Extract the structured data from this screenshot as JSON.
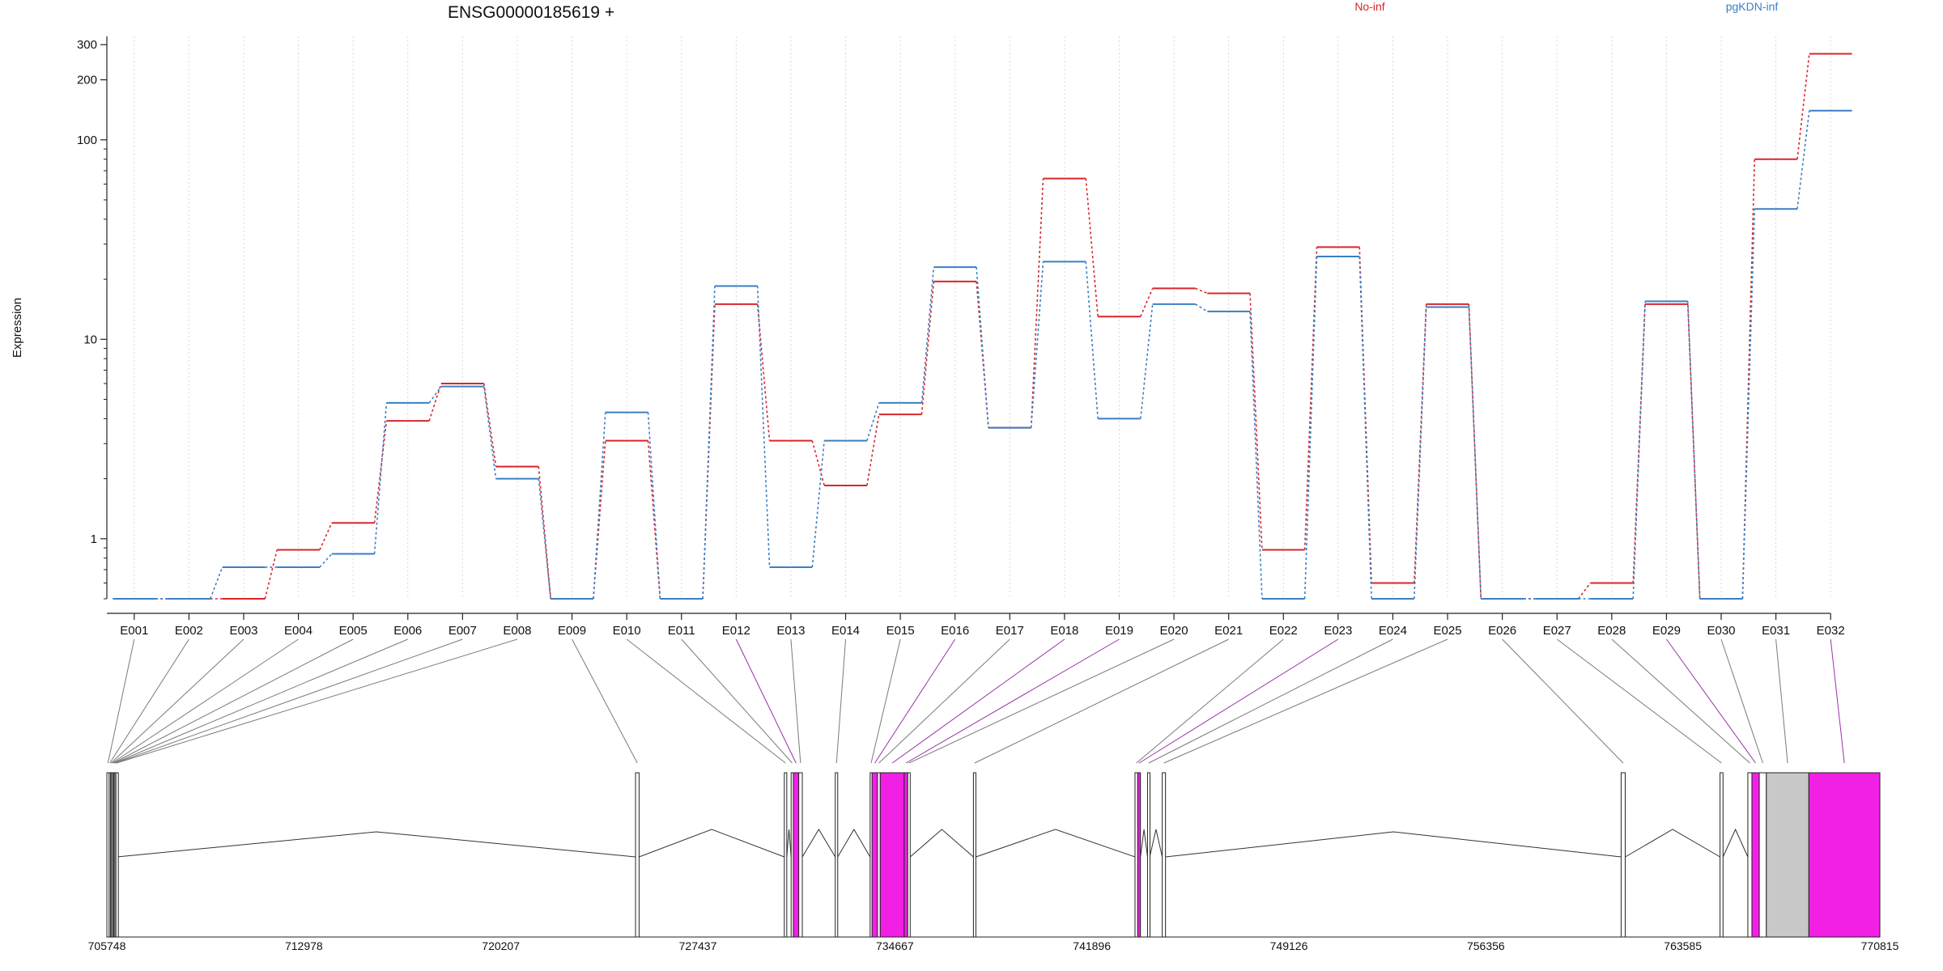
{
  "chart_data": {
    "type": "line",
    "title": "ENSG00000185619 +",
    "ylabel": "Expression",
    "xlabel": "",
    "yscale": "log",
    "ylim": [
      0.5,
      330
    ],
    "yticks": [
      1,
      10,
      100,
      200,
      300
    ],
    "ytick_labels": [
      "1",
      "10",
      "100",
      "200",
      "300"
    ],
    "grid": "vertical dotted",
    "legend": "top-right",
    "colors": {
      "No-inf": "#d9262b",
      "pgKDN-inf": "#3a7fc4",
      "highlight": "#f21fe5",
      "other": "#c8c8c8",
      "connector": "#7a7a7a",
      "connector_hi": "#9b2fa8"
    },
    "categories": [
      "E001",
      "E002",
      "E003",
      "E004",
      "E005",
      "E006",
      "E007",
      "E008",
      "E009",
      "E010",
      "E011",
      "E012",
      "E013",
      "E014",
      "E015",
      "E016",
      "E017",
      "E018",
      "E019",
      "E020",
      "E021",
      "E022",
      "E023",
      "E024",
      "E025",
      "E026",
      "E027",
      "E028",
      "E029",
      "E030",
      "E031",
      "E032"
    ],
    "series": [
      {
        "name": "No-inf",
        "color": "#d9262b",
        "values": [
          0.5,
          0.5,
          0.5,
          0.88,
          1.2,
          3.9,
          6.0,
          2.3,
          0.5,
          3.1,
          0.5,
          15.0,
          3.1,
          1.85,
          4.2,
          19.5,
          3.6,
          64.0,
          13.0,
          18.0,
          17.0,
          0.88,
          29.0,
          0.6,
          15.0,
          0.5,
          0.5,
          0.6,
          15.0,
          0.5,
          80.0,
          270.0
        ]
      },
      {
        "name": "pgKDN-inf",
        "color": "#3a7fc4",
        "values": [
          0.5,
          0.5,
          0.72,
          0.72,
          0.84,
          4.8,
          5.8,
          2.0,
          0.5,
          4.3,
          0.5,
          18.5,
          0.72,
          3.1,
          4.8,
          23.0,
          3.6,
          24.5,
          4.0,
          15.0,
          13.8,
          0.5,
          26.0,
          0.5,
          14.5,
          0.5,
          0.5,
          0.5,
          15.5,
          0.5,
          45.0,
          140.0
        ]
      }
    ],
    "genome": {
      "xlim": [
        705748,
        770815
      ],
      "ticks": [
        705748,
        712978,
        720207,
        727437,
        734667,
        741896,
        749126,
        756356,
        763585,
        770815
      ],
      "tick_labels": [
        "705748",
        "712978",
        "720207",
        "727437",
        "734667",
        "741896",
        "749126",
        "756356",
        "763585",
        "770815"
      ],
      "exons": [
        {
          "id": "E001",
          "start": 705748,
          "end": 705830,
          "type": "normal"
        },
        {
          "id": "E002",
          "start": 705830,
          "end": 705880,
          "type": "normal"
        },
        {
          "id": "E003",
          "start": 705880,
          "end": 705920,
          "type": "normal"
        },
        {
          "id": "E004",
          "start": 705920,
          "end": 705960,
          "type": "normal"
        },
        {
          "id": "E005",
          "start": 705960,
          "end": 706000,
          "type": "normal"
        },
        {
          "id": "E006",
          "start": 706000,
          "end": 706040,
          "type": "normal"
        },
        {
          "id": "E007",
          "start": 706040,
          "end": 706080,
          "type": "normal"
        },
        {
          "id": "E008",
          "start": 706080,
          "end": 706120,
          "type": "normal"
        },
        {
          "id": "E009",
          "start": 725150,
          "end": 725280,
          "type": "normal"
        },
        {
          "id": "E010",
          "start": 730610,
          "end": 730700,
          "type": "normal"
        },
        {
          "id": "E011",
          "start": 730860,
          "end": 730940,
          "type": "normal"
        },
        {
          "id": "E012",
          "start": 730940,
          "end": 731140,
          "type": "highlight"
        },
        {
          "id": "E013",
          "start": 731140,
          "end": 731270,
          "type": "normal"
        },
        {
          "id": "E014",
          "start": 732480,
          "end": 732570,
          "type": "normal"
        },
        {
          "id": "E015",
          "start": 733760,
          "end": 733830,
          "type": "normal"
        },
        {
          "id": "E016",
          "start": 733830,
          "end": 734030,
          "type": "highlight"
        },
        {
          "id": "E017",
          "start": 734030,
          "end": 734130,
          "type": "normal"
        },
        {
          "id": "E018",
          "start": 734130,
          "end": 735010,
          "type": "highlight"
        },
        {
          "id": "E019",
          "start": 735010,
          "end": 735140,
          "type": "highlight"
        },
        {
          "id": "E020",
          "start": 735140,
          "end": 735230,
          "type": "normal"
        },
        {
          "id": "E021",
          "start": 737550,
          "end": 737640,
          "type": "normal"
        },
        {
          "id": "E022",
          "start": 743480,
          "end": 743580,
          "type": "normal"
        },
        {
          "id": "E023",
          "start": 743580,
          "end": 743680,
          "type": "highlight"
        },
        {
          "id": "E024",
          "start": 743940,
          "end": 744020,
          "type": "normal"
        },
        {
          "id": "E025",
          "start": 744480,
          "end": 744600,
          "type": "normal"
        },
        {
          "id": "E026",
          "start": 761320,
          "end": 761470,
          "type": "normal"
        },
        {
          "id": "E027",
          "start": 764950,
          "end": 765060,
          "type": "normal"
        },
        {
          "id": "E028",
          "start": 765970,
          "end": 766120,
          "type": "normal"
        },
        {
          "id": "E029",
          "start": 766120,
          "end": 766390,
          "type": "highlight"
        },
        {
          "id": "E030",
          "start": 766390,
          "end": 766650,
          "type": "normal"
        },
        {
          "id": "E031",
          "start": 766650,
          "end": 768210,
          "type": "other"
        },
        {
          "id": "E032",
          "start": 768210,
          "end": 770815,
          "type": "highlight"
        }
      ]
    }
  }
}
